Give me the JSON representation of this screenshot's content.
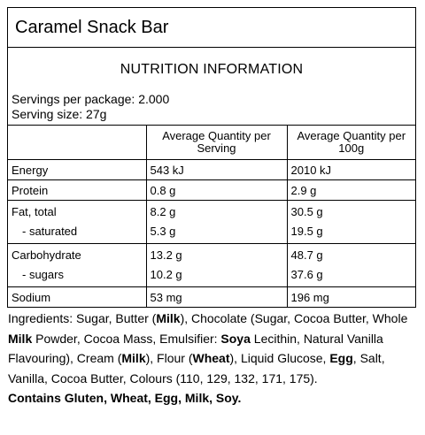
{
  "product": {
    "title": "Caramel Snack Bar"
  },
  "panel": {
    "heading": "NUTRITION INFORMATION",
    "servings_per_package": "Servings per package: 2.000",
    "serving_size": "Serving size: 27g"
  },
  "table": {
    "col_serving": "Average Quantity per Serving",
    "col_100g": "Average Quantity per 100g",
    "energy": {
      "label": "Energy",
      "serving": "543 kJ",
      "per100": "2010 kJ"
    },
    "protein": {
      "label": "Protein",
      "serving": "0.8 g",
      "per100": "2.9 g"
    },
    "fat": {
      "label": "Fat, total",
      "serving": "8.2 g",
      "per100": "30.5 g"
    },
    "saturated": {
      "label": "- saturated",
      "serving": "5.3 g",
      "per100": "19.5 g"
    },
    "carbohydrate": {
      "label": "Carbohydrate",
      "serving": "13.2 g",
      "per100": "48.7 g"
    },
    "sugars": {
      "label": "- sugars",
      "serving": "10.2 g",
      "per100": "37.6 g"
    },
    "sodium": {
      "label": "Sodium",
      "serving": "53 mg",
      "per100": "196 mg"
    }
  },
  "ingredients": {
    "p1": "Ingredients: Sugar, Butter (",
    "milk1": "Milk",
    "p2": "), Chocolate (Sugar, Cocoa Butter, Whole ",
    "milk2": "Milk",
    "p3": " Powder, Cocoa Mass, Emulsifier: ",
    "soya": "Soya",
    "p4": " Lecithin, Natural Vanilla Flavouring), Cream (",
    "milk3": "Milk",
    "p5": "), Flour (",
    "wheat": "Wheat",
    "p6": "), Liquid Glucose, ",
    "egg": "Egg",
    "p7": ", Salt, Vanilla, Cocoa Butter, Colours (110, 129, 132, 171, 175).",
    "allergens": "Contains Gluten, Wheat, Egg, Milk, Soy."
  }
}
